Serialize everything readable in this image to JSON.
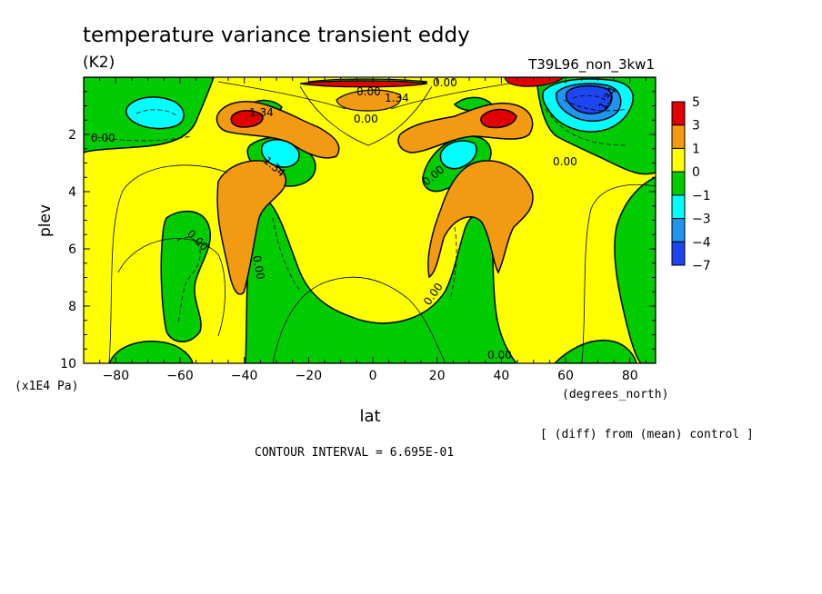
{
  "chart_data": {
    "type": "contour",
    "title": "temperature variance transient eddy",
    "units": "(K2)",
    "run_name": "T39L96_non_3kw1",
    "xlabel": "lat",
    "xunits": "(degrees_north)",
    "ylabel": "plev",
    "yunits": "(x1E4 Pa)",
    "xlim": [
      -90,
      88
    ],
    "ylim": [
      10,
      0
    ],
    "x_ticks": [
      -80,
      -60,
      -40,
      -20,
      0,
      20,
      40,
      60,
      80
    ],
    "x_tick_labels": [
      "−80",
      "−60",
      "−40",
      "−20",
      "0",
      "20",
      "40",
      "60",
      "80"
    ],
    "y_ticks": [
      2,
      4,
      6,
      8,
      10
    ],
    "y_tick_labels": [
      "2",
      "4",
      "6",
      "8",
      "10"
    ],
    "footnote": "[ (diff) from (mean) control ]",
    "contour_interval_text": "CONTOUR INTERVAL = 6.695E-01",
    "colorbar": {
      "labels": [
        "5",
        "3",
        "1",
        "0",
        "−1",
        "−3",
        "−4",
        "−7"
      ],
      "colors": [
        "#e00000",
        "#f29a12",
        "#ffff00",
        "#00cc00",
        "#00ffff",
        "#1e96f0",
        "#1e46f0"
      ]
    },
    "contour_labels": [
      "0.00",
      "0.00",
      "0.00",
      "0.00",
      "0.00",
      "0.00",
      "0.00",
      "0.00",
      "0.00",
      "0.00",
      "1.34",
      "1.34",
      "1.34",
      "1.34"
    ],
    "regions": [
      {
        "level": "0..1",
        "color": "#ffff00",
        "center": [
          0,
          6
        ],
        "note": "background"
      },
      {
        "level": "-1..0",
        "color": "#00cc00",
        "center": [
          -60,
          7
        ]
      },
      {
        "level": "-1..0",
        "color": "#00cc00",
        "center": [
          -15,
          8
        ]
      },
      {
        "level": "-1..0",
        "color": "#00cc00",
        "center": [
          20,
          8
        ]
      },
      {
        "level": "-1..0",
        "color": "#00cc00",
        "center": [
          -75,
          1.5
        ]
      },
      {
        "level": "-1..0",
        "color": "#00cc00",
        "center": [
          75,
          2.5
        ]
      },
      {
        "level": "1..3",
        "color": "#f29a12",
        "center": [
          -42,
          4.5
        ]
      },
      {
        "level": "1..3",
        "color": "#f29a12",
        "center": [
          40,
          4.5
        ]
      },
      {
        "level": "1..3",
        "color": "#f29a12",
        "center": [
          -20,
          1.8
        ]
      },
      {
        "level": "1..3",
        "color": "#f29a12",
        "center": [
          20,
          1.8
        ]
      },
      {
        "level": "3..5",
        "color": "#e00000",
        "center": [
          -38,
          1.3
        ]
      },
      {
        "level": "3..5",
        "color": "#e00000",
        "center": [
          40,
          1.3
        ]
      },
      {
        "level": "-3..-1",
        "color": "#00ffff",
        "center": [
          -75,
          1.2
        ]
      },
      {
        "level": "-3..-1",
        "color": "#00ffff",
        "center": [
          -28,
          2.7
        ]
      },
      {
        "level": "-3..-1",
        "color": "#00ffff",
        "center": [
          30,
          2.4
        ]
      },
      {
        "level": "-7..-4",
        "color": "#1e46f0",
        "center": [
          68,
          0.7
        ]
      }
    ]
  }
}
